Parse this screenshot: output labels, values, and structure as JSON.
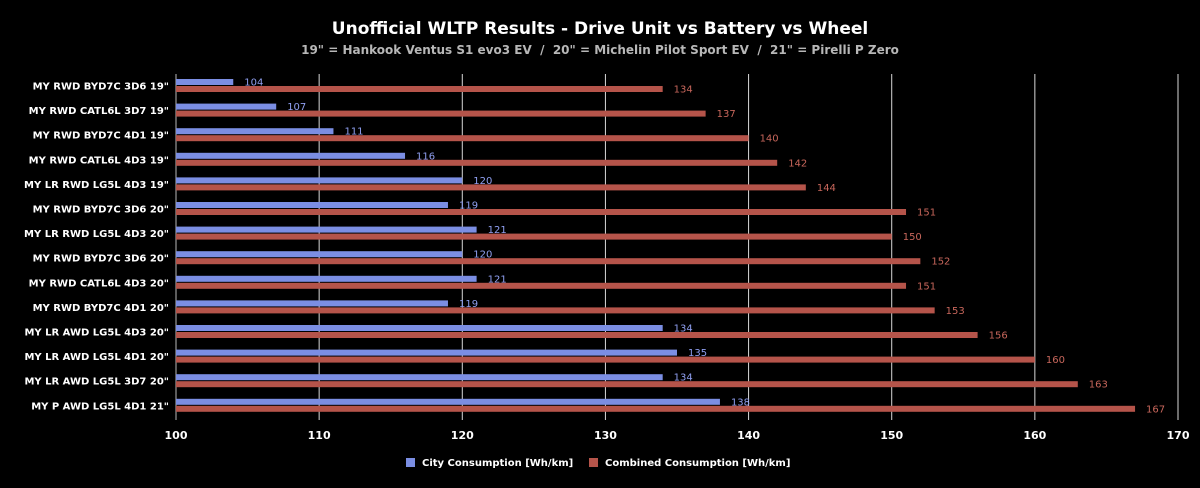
{
  "chart_data": {
    "type": "bar",
    "orientation": "horizontal",
    "title": "Unofficial WLTP Results - Drive Unit vs Battery vs Wheel",
    "subtitle": "19\" = Hankook Ventus S1 evo3 EV  /  20\" = Michelin Pilot Sport EV  /  21\" = Pirelli P Zero",
    "categories": [
      "MY RWD BYD7C 3D6 19\"",
      "MY RWD CATL6L 3D7 19\"",
      "MY RWD BYD7C 4D1 19\"",
      "MY RWD CATL6L 4D3 19\"",
      "MY LR RWD LG5L 4D3 19\"",
      "MY RWD BYD7C 3D6 20\"",
      "MY LR RWD LG5L 4D3 20\"",
      "MY RWD BYD7C 3D6 20\"",
      "MY RWD CATL6L 4D3 20\"",
      "MY RWD BYD7C 4D1 20\"",
      "MY LR AWD LG5L 4D3 20\"",
      "MY LR AWD LG5L 4D1 20\"",
      "MY LR AWD LG5L 3D7 20\"",
      "MY P AWD LG5L 4D1 21\""
    ],
    "series": [
      {
        "name": "City Consumption [Wh/km]",
        "color": "#7b8ee3",
        "label_color": "#8f9ff0",
        "values": [
          104,
          107,
          111,
          116,
          120,
          119,
          121,
          120,
          121,
          119,
          134,
          135,
          134,
          138
        ]
      },
      {
        "name": "Combined Consumption [Wh/km]",
        "color": "#b5544a",
        "label_color": "#c7665b",
        "values": [
          134,
          137,
          140,
          142,
          144,
          151,
          150,
          152,
          151,
          153,
          156,
          160,
          163,
          167
        ]
      }
    ],
    "xlim": [
      100,
      170
    ],
    "xticks": [
      100,
      110,
      120,
      130,
      140,
      150,
      160,
      170
    ],
    "grid": true,
    "legend_position": "bottom-center",
    "xlabel": "",
    "ylabel": ""
  }
}
